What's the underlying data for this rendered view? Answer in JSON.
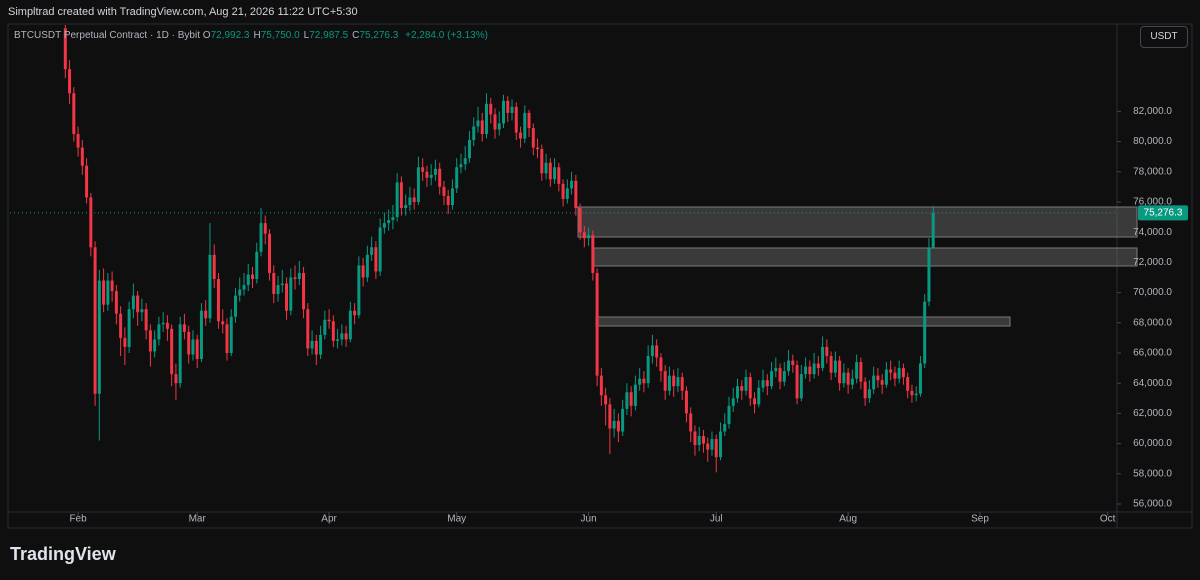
{
  "header": "Simpltrad created with TradingView.com, Aug 21, 2026 11:22 UTC+5:30",
  "footer_logo": "TradingView",
  "chart_data": {
    "type": "candlestick",
    "title": "BTCUSDT Perpetual Contract · 1D · Bybit",
    "ohlc": [
      {
        "key": "O",
        "value": "72,992.3"
      },
      {
        "key": "H",
        "value": "75,750.0"
      },
      {
        "key": "L",
        "value": "72,987.5"
      },
      {
        "key": "C",
        "value": "75,276.3"
      }
    ],
    "change": "+2,284.0 (+3.13%)",
    "currency": "USDT",
    "last_price_label": "75,276.3",
    "up_color": "#089981",
    "down_color": "#f23645",
    "xlim": [
      -13,
      247.2
    ],
    "xticks": [
      {
        "value": 3,
        "label": "Feb"
      },
      {
        "value": 31,
        "label": "Mar"
      },
      {
        "value": 62,
        "label": "Apr"
      },
      {
        "value": 92,
        "label": "May"
      },
      {
        "value": 123,
        "label": "Jun"
      },
      {
        "value": 153,
        "label": "Jul"
      },
      {
        "value": 184,
        "label": "Aug"
      },
      {
        "value": 215,
        "label": "Sep"
      },
      {
        "value": 245,
        "label": "Oct"
      }
    ],
    "ylim": [
      55470,
      87720
    ],
    "yticks": [
      {
        "value": 56000,
        "label": "56,000.0"
      },
      {
        "value": 58000,
        "label": "58,000.0"
      },
      {
        "value": 60000,
        "label": "60,000.0"
      },
      {
        "value": 62000,
        "label": "62,000.0"
      },
      {
        "value": 64000,
        "label": "64,000.0"
      },
      {
        "value": 66000,
        "label": "66,000.0"
      },
      {
        "value": 68000,
        "label": "68,000.0"
      },
      {
        "value": 70000,
        "label": "70,000.0"
      },
      {
        "value": 72000,
        "label": "72,000.0"
      },
      {
        "value": 74000,
        "label": "74,000.0"
      },
      {
        "value": 76000,
        "label": "76,000.0"
      },
      {
        "value": 78000,
        "label": "78,000.0"
      },
      {
        "value": 80000,
        "label": "80,000.0"
      },
      {
        "value": 82000,
        "label": "82,000.0"
      }
    ],
    "open": [
      87500,
      84800,
      83200,
      80500,
      79600,
      78400,
      76300,
      73000,
      63300,
      70800,
      69200,
      70800,
      70100,
      68600,
      67000,
      66400,
      68900,
      69800,
      68700,
      68900,
      67500,
      66100,
      66900,
      67900,
      68000,
      67600,
      64600,
      64000,
      67900,
      67400,
      65900,
      66900,
      65600,
      68800,
      68300,
      72500,
      70900,
      68100,
      67900,
      66000,
      68400,
      69800,
      70200,
      70500,
      71200,
      70900,
      72700,
      74600,
      73900,
      71300,
      69900,
      70500,
      70600,
      68800,
      71000,
      70900,
      71300,
      68900,
      66300,
      66800,
      65900,
      67200,
      68200,
      68100,
      66800,
      66900,
      67300,
      66900,
      68800,
      68500,
      71800,
      71000,
      72500,
      73000,
      71400,
      74300,
      74600,
      74800,
      75000,
      77300,
      75600,
      75800,
      76300,
      76000,
      78300,
      78000,
      77600,
      77800,
      78200,
      77000,
      76400,
      75800,
      76900,
      78300,
      78500,
      78900,
      80100,
      81000,
      81400,
      80500,
      82500,
      81800,
      80800,
      81200,
      82700,
      81900,
      82300,
      80600,
      80200,
      81900,
      80900,
      79600,
      79500,
      77900,
      78600,
      77500,
      78300,
      77200,
      76200,
      76900,
      77400,
      75600,
      74000,
      73600,
      73800,
      71300,
      64500,
      63200,
      62600,
      61000,
      61500,
      60800,
      62300,
      63400,
      62500,
      63900,
      64300,
      64000,
      65800,
      66500,
      65700,
      64800,
      63500,
      64500,
      63800,
      64400,
      63500,
      62000,
      60800,
      59900,
      60500,
      60000,
      59600,
      60300,
      59100,
      60800,
      61300,
      62500,
      63000,
      63800,
      63500,
      64400,
      63000,
      62600,
      63700,
      64200,
      63800,
      64800,
      65000,
      64100,
      64800,
      65500,
      65200,
      63000,
      64600,
      65100,
      64600,
      65300,
      65000,
      66400,
      65800,
      64700,
      65500,
      64000,
      64700,
      63900,
      64300,
      65400,
      64100,
      63000,
      63600,
      64500,
      64200,
      63900,
      64900,
      64700,
      64300,
      65000,
      64400,
      63500,
      63200,
      63300,
      65300,
      69400,
      72992.3
    ],
    "high": [
      88600,
      85400,
      83600,
      81000,
      80100,
      78900,
      76600,
      73400,
      71500,
      71600,
      71300,
      71400,
      70500,
      69100,
      67700,
      69400,
      70600,
      70100,
      69600,
      69300,
      67900,
      67500,
      68400,
      68700,
      68500,
      67900,
      65300,
      68400,
      68600,
      67800,
      67500,
      67200,
      69300,
      69500,
      74600,
      73200,
      71300,
      68900,
      68300,
      68900,
      70300,
      71000,
      71300,
      71900,
      71700,
      73300,
      75600,
      75100,
      74200,
      71800,
      71100,
      71500,
      71000,
      71600,
      71800,
      72100,
      71700,
      69300,
      67500,
      67200,
      67800,
      68800,
      68900,
      68500,
      67600,
      67900,
      67800,
      69400,
      69300,
      72400,
      72300,
      73100,
      73700,
      73400,
      74900,
      75300,
      75500,
      75800,
      77900,
      77700,
      76500,
      77000,
      76900,
      79000,
      78900,
      78400,
      78500,
      78800,
      78600,
      77400,
      76800,
      77500,
      78900,
      79200,
      79700,
      80700,
      81600,
      82300,
      81900,
      83200,
      82900,
      82200,
      82000,
      83100,
      83000,
      82800,
      82600,
      81000,
      82400,
      82100,
      81200,
      80200,
      79800,
      79200,
      78900,
      78900,
      78600,
      77500,
      77500,
      78000,
      77800,
      75900,
      74400,
      74300,
      74100,
      71600,
      65000,
      63700,
      63000,
      62300,
      62000,
      62900,
      64000,
      63800,
      64500,
      65000,
      64800,
      66500,
      67200,
      66900,
      66000,
      65200,
      65100,
      64900,
      65000,
      64700,
      63800,
      62400,
      61200,
      61100,
      60900,
      60400,
      60800,
      60600,
      61400,
      62000,
      63100,
      63700,
      64300,
      64200,
      64900,
      64700,
      63400,
      64200,
      64900,
      64600,
      65400,
      65700,
      65300,
      65400,
      66200,
      65900,
      65500,
      65200,
      65700,
      65500,
      66000,
      65800,
      67100,
      66900,
      66100,
      66100,
      65800,
      65300,
      65000,
      64900,
      65900,
      65700,
      64400,
      64200,
      65100,
      65000,
      64600,
      65400,
      65500,
      65100,
      65500,
      65300,
      64700,
      63900,
      63800,
      65800,
      69900,
      73600,
      75750
    ],
    "low": [
      84200,
      82500,
      80000,
      79000,
      77800,
      75900,
      72400,
      62500,
      60200,
      68700,
      68800,
      69400,
      67900,
      65800,
      65200,
      66000,
      68300,
      67800,
      68100,
      66900,
      65100,
      65700,
      66500,
      67400,
      66800,
      63800,
      62900,
      63700,
      66900,
      65300,
      65500,
      65000,
      65400,
      67800,
      68000,
      70300,
      67600,
      67300,
      65500,
      65800,
      68000,
      69400,
      69800,
      70100,
      70300,
      70600,
      72400,
      73200,
      70800,
      69300,
      69400,
      70000,
      68200,
      68500,
      70200,
      70500,
      68300,
      65800,
      65900,
      65200,
      65600,
      66900,
      67600,
      66400,
      66300,
      66500,
      66400,
      66700,
      67900,
      68300,
      70400,
      70700,
      72100,
      70900,
      71100,
      73900,
      74100,
      74200,
      74700,
      75100,
      75100,
      75400,
      75500,
      75800,
      77400,
      77000,
      77100,
      77400,
      76500,
      75800,
      75200,
      75500,
      76600,
      77900,
      78100,
      78600,
      79700,
      80600,
      80000,
      80200,
      81200,
      80200,
      80400,
      80900,
      81300,
      81400,
      80100,
      79600,
      79900,
      80300,
      79100,
      78900,
      77400,
      77500,
      77000,
      77200,
      76700,
      75700,
      75900,
      76500,
      75100,
      73500,
      73000,
      73100,
      70800,
      63800,
      62500,
      61200,
      59300,
      60400,
      60100,
      60500,
      61900,
      61800,
      62200,
      63500,
      63400,
      63700,
      65300,
      65100,
      64100,
      62900,
      63200,
      63100,
      63400,
      62900,
      61400,
      60100,
      59200,
      59500,
      59400,
      58800,
      59200,
      58100,
      58900,
      60500,
      61000,
      62100,
      62700,
      62900,
      63200,
      62500,
      62000,
      62400,
      63400,
      63200,
      63600,
      64400,
      63600,
      63800,
      64500,
      64700,
      62600,
      62800,
      64300,
      64100,
      64300,
      64500,
      64800,
      65300,
      64200,
      64400,
      63500,
      63700,
      63300,
      63600,
      64000,
      63600,
      62500,
      62700,
      63300,
      63700,
      63300,
      63700,
      64200,
      63800,
      64000,
      63900,
      63000,
      62700,
      62800,
      63100,
      65000,
      69100,
      72987.5
    ],
    "close": [
      84800,
      83200,
      80500,
      79600,
      78400,
      76300,
      73000,
      63300,
      70800,
      69200,
      70800,
      70100,
      68600,
      67000,
      66400,
      68900,
      69800,
      68700,
      68900,
      67500,
      66100,
      66900,
      67900,
      68000,
      67600,
      64600,
      64000,
      67900,
      67400,
      65900,
      66900,
      65600,
      68800,
      68300,
      72500,
      70900,
      68100,
      67900,
      66000,
      68400,
      69800,
      70200,
      70500,
      71200,
      70900,
      72700,
      74600,
      73900,
      71300,
      69900,
      70500,
      70600,
      68800,
      71000,
      70900,
      71300,
      68900,
      66300,
      66800,
      65900,
      67200,
      68200,
      68100,
      66800,
      66900,
      67300,
      66900,
      68800,
      68500,
      71800,
      71000,
      72500,
      73000,
      71400,
      74300,
      74600,
      74800,
      75000,
      77300,
      75600,
      75800,
      76300,
      76000,
      78300,
      78000,
      77600,
      77800,
      78200,
      77000,
      76400,
      75800,
      76900,
      78300,
      78500,
      78900,
      80100,
      81000,
      81400,
      80500,
      82500,
      81800,
      80800,
      81200,
      82700,
      81900,
      82300,
      80600,
      80200,
      81900,
      80900,
      79600,
      79500,
      77900,
      78600,
      77500,
      78300,
      77200,
      76200,
      76900,
      77400,
      75600,
      74000,
      73600,
      73800,
      71300,
      64500,
      63200,
      62600,
      61000,
      61500,
      60800,
      62300,
      63400,
      62500,
      63900,
      64300,
      64000,
      65800,
      66500,
      65700,
      64800,
      63500,
      64500,
      63800,
      64400,
      63500,
      62000,
      60800,
      59900,
      60500,
      60000,
      59600,
      60300,
      59100,
      60800,
      61300,
      62500,
      63000,
      63800,
      63500,
      64400,
      63000,
      62600,
      63700,
      64200,
      63800,
      64800,
      65000,
      64100,
      64800,
      65500,
      65200,
      63000,
      64600,
      65100,
      64600,
      65300,
      65000,
      66400,
      65800,
      64700,
      65500,
      64000,
      64700,
      63900,
      64300,
      65400,
      64100,
      63000,
      63600,
      64500,
      64200,
      63900,
      64900,
      64700,
      64300,
      65000,
      64400,
      63500,
      63200,
      63300,
      65300,
      69400,
      72992.3,
      75276.3
    ]
  }
}
